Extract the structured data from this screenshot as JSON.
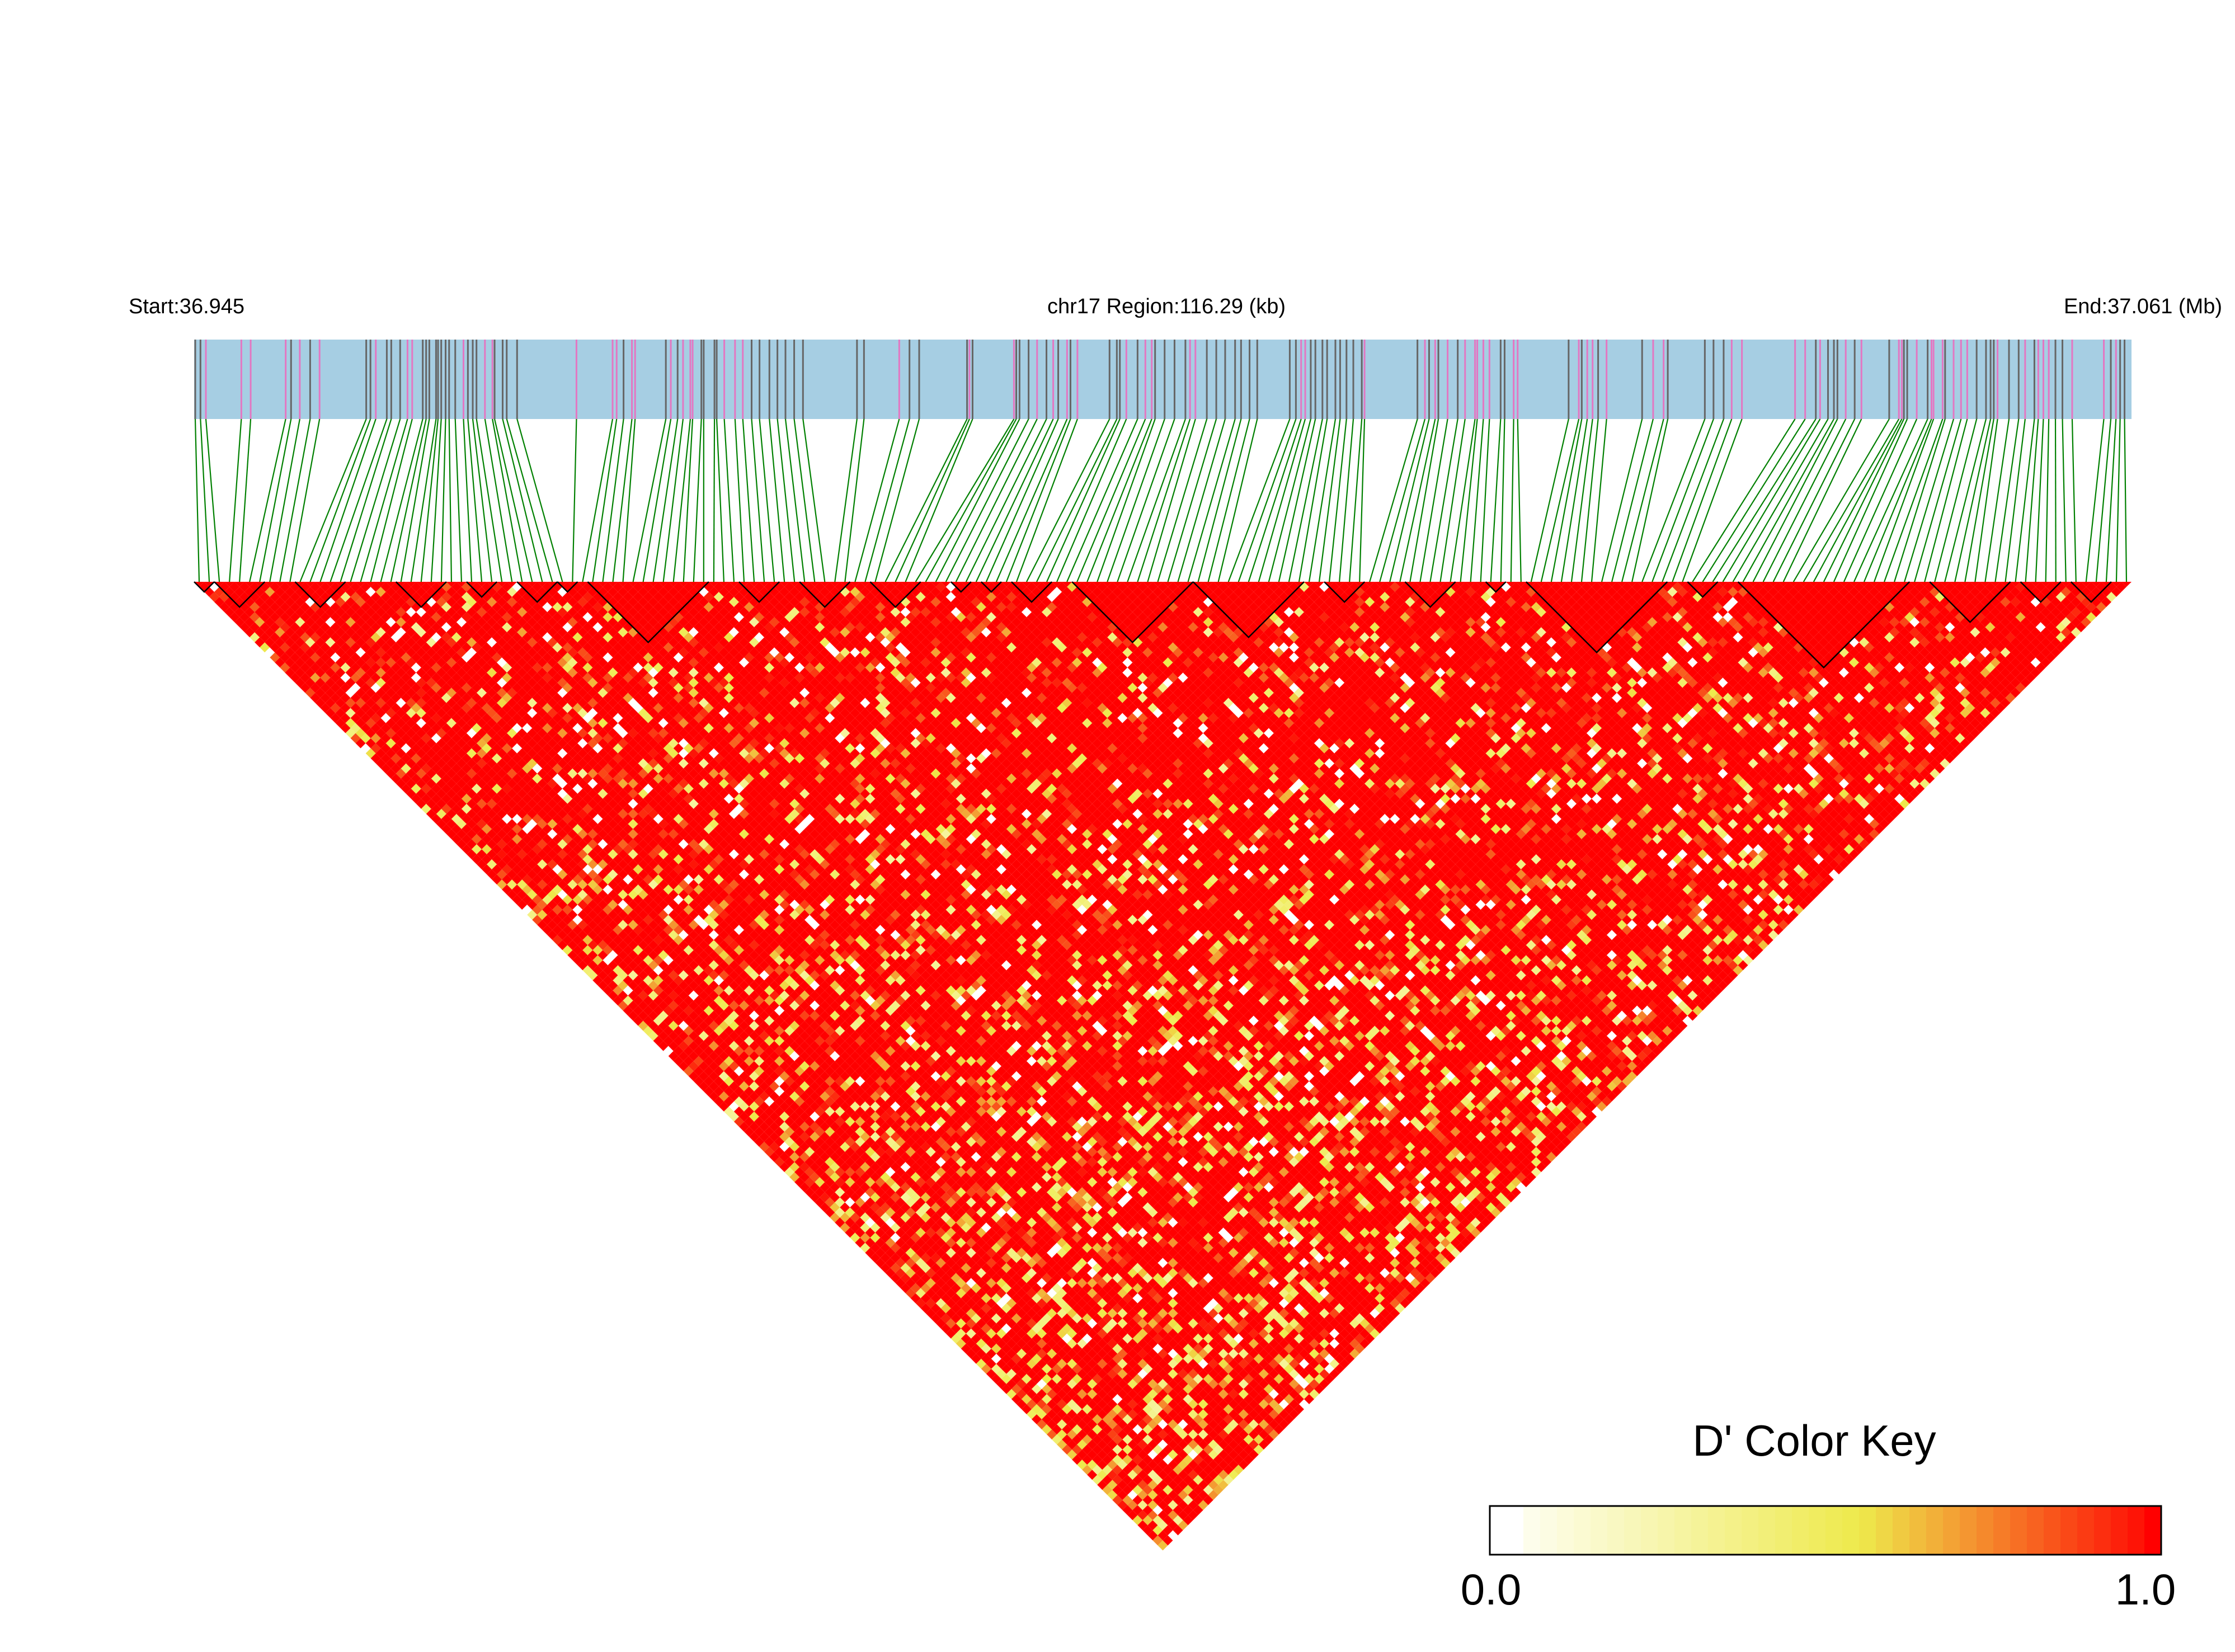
{
  "chart_data": {
    "type": "heatmap",
    "subtype": "LD triangle heatmap",
    "chromosome": "chr17",
    "labels": {
      "start": "Start:36.945",
      "region": "chr17 Region:116.29 (kb)",
      "end": "End:37.061 (Mb)"
    },
    "region_start_mb": 36.945,
    "region_end_mb": 37.061,
    "region_length_kb": 116.29,
    "snp_count": 192,
    "cell_metric": "D'",
    "value_range": [
      0.0,
      1.0
    ],
    "values_note": "Pairwise D' values among the 192 SNPs; predominantly high (red, ~1.0) with scattered yellow/white cells (~0.3-0.7 and 0.0).",
    "haplotype_block_count": 22,
    "colors": {
      "track_fill": "#a6cee3",
      "snp_line_gray": "#666666",
      "snp_line_pink": "#e377c2",
      "connector": "#008000",
      "d_high": "#ff0000",
      "d_mid": "#eeea4c",
      "d_low": "#ffffff",
      "block_outline": "#000000"
    },
    "legend": {
      "title": "D' Color Key",
      "min_label": "0.0",
      "max_label": "1.0",
      "placement": "bottom-right"
    }
  }
}
